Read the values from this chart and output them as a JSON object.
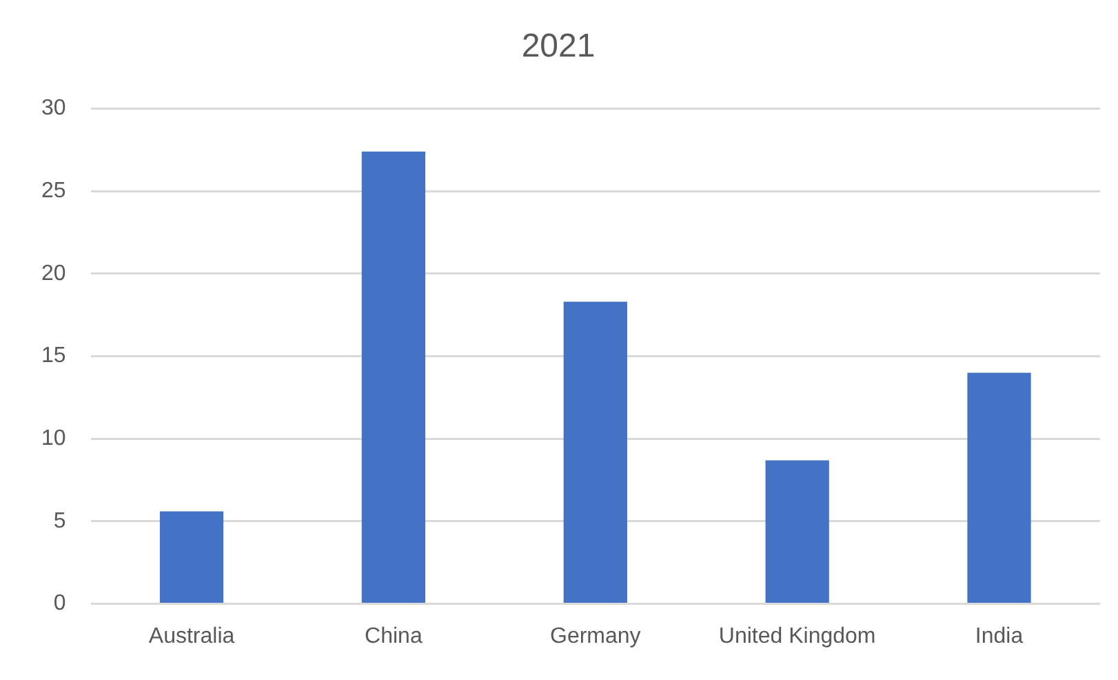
{
  "chart_data": {
    "type": "bar",
    "title": "2021",
    "categories": [
      "Australia",
      "China",
      "Germany",
      "United Kingdom",
      "India"
    ],
    "values": [
      5.6,
      27.4,
      18.3,
      8.7,
      14.0
    ],
    "color": "#4472c4",
    "ylim": [
      0,
      30
    ],
    "yticks": [
      0,
      5,
      10,
      15,
      20,
      25,
      30
    ],
    "grid": "y"
  }
}
